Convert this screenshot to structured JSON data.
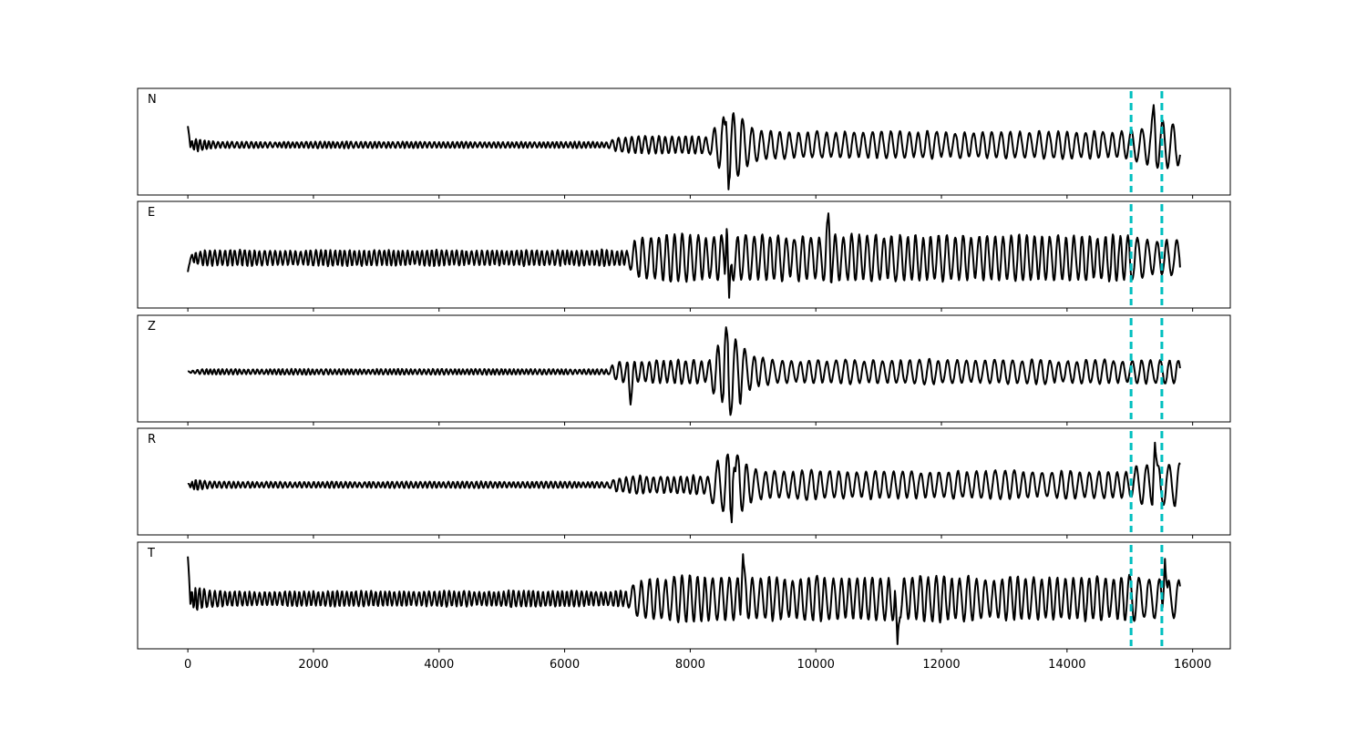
{
  "chart_data": {
    "type": "line",
    "layout": "5 stacked panels sharing x-axis",
    "xlim": [
      -800,
      16600
    ],
    "x_ticks": [
      0,
      2000,
      4000,
      6000,
      8000,
      10000,
      12000,
      14000,
      16000
    ],
    "x_tick_labels": [
      "0",
      "2000",
      "4000",
      "6000",
      "8000",
      "10000",
      "12000",
      "14000",
      "16000"
    ],
    "trace_x_range": [
      0,
      15800
    ],
    "y_ticks_shown": false,
    "grid": false,
    "vertical_markers": {
      "values": [
        15020,
        15510
      ],
      "color": "#00bfbf",
      "style": "dashed"
    },
    "panels": [
      {
        "label": "N",
        "segments": [
          {
            "x0": 0,
            "x1": 150,
            "amp": 0.25,
            "period": 60
          },
          {
            "x0": 150,
            "x1": 6700,
            "amp": 0.08,
            "period": 75
          },
          {
            "x0": 6700,
            "x1": 8300,
            "amp": 0.22,
            "period": 110
          },
          {
            "x0": 8300,
            "x1": 8800,
            "amp": 0.85,
            "period": 160
          },
          {
            "x0": 8800,
            "x1": 15000,
            "amp": 0.35,
            "period": 150
          },
          {
            "x0": 15000,
            "x1": 15800,
            "amp": 0.55,
            "period": 170
          }
        ],
        "spikes": [
          {
            "x": 8590,
            "y": 0.93
          },
          {
            "x": 8610,
            "y": -0.95
          },
          {
            "x": 15380,
            "y": 0.85
          },
          {
            "x": 0,
            "y": 0.4
          }
        ]
      },
      {
        "label": "E",
        "segments": [
          {
            "x0": 0,
            "x1": 150,
            "amp": 0.2,
            "period": 60
          },
          {
            "x0": 150,
            "x1": 7000,
            "amp": 0.2,
            "period": 80
          },
          {
            "x0": 7000,
            "x1": 15000,
            "amp": 0.6,
            "period": 130
          },
          {
            "x0": 15000,
            "x1": 15800,
            "amp": 0.5,
            "period": 160
          }
        ],
        "spikes": [
          {
            "x": 8590,
            "y": 0.93
          },
          {
            "x": 8620,
            "y": -0.85
          },
          {
            "x": 10200,
            "y": 0.95
          },
          {
            "x": 0,
            "y": -0.3
          }
        ]
      },
      {
        "label": "Z",
        "segments": [
          {
            "x0": 0,
            "x1": 6700,
            "amp": 0.07,
            "period": 70
          },
          {
            "x0": 6700,
            "x1": 8300,
            "amp": 0.3,
            "period": 120
          },
          {
            "x0": 8300,
            "x1": 8800,
            "amp": 0.9,
            "period": 150
          },
          {
            "x0": 8800,
            "x1": 15800,
            "amp": 0.3,
            "period": 150
          }
        ],
        "spikes": [
          {
            "x": 8570,
            "y": 0.95
          },
          {
            "x": 8640,
            "y": -0.92
          },
          {
            "x": 7050,
            "y": -0.7
          }
        ]
      },
      {
        "label": "R",
        "segments": [
          {
            "x0": 0,
            "x1": 150,
            "amp": 0.2,
            "period": 60
          },
          {
            "x0": 150,
            "x1": 6700,
            "amp": 0.08,
            "period": 75
          },
          {
            "x0": 6700,
            "x1": 8300,
            "amp": 0.22,
            "period": 110
          },
          {
            "x0": 8300,
            "x1": 8800,
            "amp": 0.85,
            "period": 160
          },
          {
            "x0": 8800,
            "x1": 15000,
            "amp": 0.35,
            "period": 150
          },
          {
            "x0": 15000,
            "x1": 15800,
            "amp": 0.55,
            "period": 170
          }
        ],
        "spikes": [
          {
            "x": 8680,
            "y": 0.95
          },
          {
            "x": 8660,
            "y": -0.8
          },
          {
            "x": 15400,
            "y": 0.9
          }
        ]
      },
      {
        "label": "T",
        "segments": [
          {
            "x0": 0,
            "x1": 150,
            "amp": 0.4,
            "period": 60
          },
          {
            "x0": 150,
            "x1": 7000,
            "amp": 0.2,
            "period": 80
          },
          {
            "x0": 7000,
            "x1": 15000,
            "amp": 0.55,
            "period": 130
          },
          {
            "x0": 15000,
            "x1": 15800,
            "amp": 0.5,
            "period": 160
          }
        ],
        "spikes": [
          {
            "x": 0,
            "y": 0.9
          },
          {
            "x": 8840,
            "y": 0.95
          },
          {
            "x": 11300,
            "y": -0.97
          },
          {
            "x": 15560,
            "y": 0.85
          }
        ]
      }
    ]
  }
}
